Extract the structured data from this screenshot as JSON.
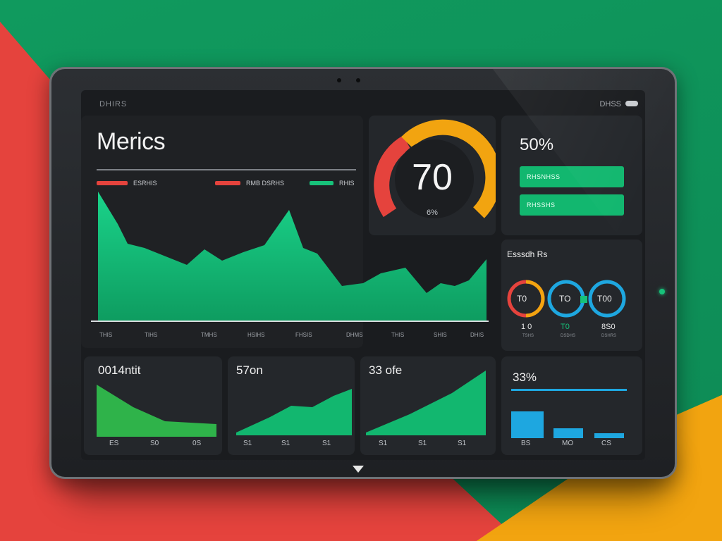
{
  "screen": {
    "topbar_left": "DHIRS",
    "topbar_right": "DHSS",
    "title": "Merics",
    "legend": [
      {
        "label": "ESRHIS",
        "color": "#e5433d"
      },
      {
        "label": "RMB DSRHS",
        "color": "#e5433d"
      },
      {
        "label": "RHIS",
        "color": "#17c27a"
      }
    ],
    "main_chart_xlabels": [
      "THIS",
      "TIHS",
      "TMHS",
      "HSIHS",
      "FHSIS",
      "DHMS",
      "THIS",
      "SHIS",
      "DHIS"
    ]
  },
  "gauge": {
    "value": "70",
    "unit": "%",
    "caption": "6%"
  },
  "progress_panel": {
    "percent": "50%",
    "bars": [
      {
        "label": "RHSNHSS"
      },
      {
        "label": "RHSSHS"
      }
    ]
  },
  "rings": {
    "title": "Esssdh Rs",
    "items": [
      {
        "inner": "T0",
        "value": "1 0",
        "sub": "TSHS",
        "colors": [
          "#e5433d",
          "#f2a410"
        ]
      },
      {
        "inner": "TO",
        "value": "T0",
        "sub": "DSDHS",
        "colors": [
          "#1ea7e0",
          "#17c27a"
        ]
      },
      {
        "inner": "T00",
        "value": "8S0",
        "sub": "DSHRS",
        "colors": [
          "#1ea7e0",
          "#1ea7e0"
        ]
      }
    ]
  },
  "small_cards": [
    {
      "title": "0014ntit",
      "ticks": [
        "ES",
        "S0",
        "0S"
      ],
      "shape": "down",
      "color": "#2fb34a"
    },
    {
      "title": "57on",
      "ticks": [
        "S1",
        "S1",
        "S1"
      ],
      "shape": "up-steps",
      "color": "#12b76f"
    },
    {
      "title": "33 ofe",
      "ticks": [
        "S1",
        "S1",
        "S1"
      ],
      "shape": "up",
      "color": "#12b76f"
    }
  ],
  "bar_card": {
    "title": "33%",
    "ticks": [
      "BS",
      "MO",
      "CS"
    ],
    "values": [
      38,
      14,
      7
    ],
    "color": "#1ea7e0"
  }
}
